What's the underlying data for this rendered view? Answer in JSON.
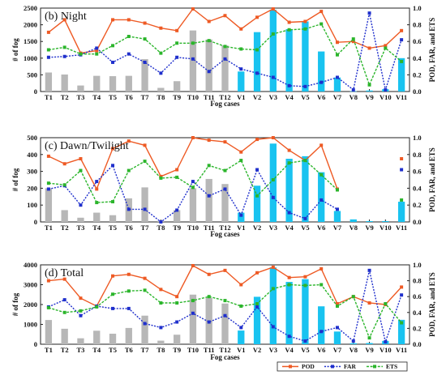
{
  "chart_data": [
    {
      "type": "bar",
      "title": "(b) Night",
      "xlabel": "Fog cases",
      "ylabel": "# of fog",
      "y2label": "POD, FAR, and ETS",
      "categories": [
        "T1",
        "T2",
        "T3",
        "T4",
        "T5",
        "T6",
        "T7",
        "T8",
        "T9",
        "T10",
        "T11",
        "T12",
        "V1",
        "V2",
        "V3",
        "V4",
        "V5",
        "V6",
        "V7",
        "V8",
        "V9",
        "V10",
        "V11"
      ],
      "ylim": [
        0,
        2500
      ],
      "yticks": [
        0,
        500,
        1000,
        1500,
        2000,
        2500
      ],
      "y2lim": [
        0,
        1.0
      ],
      "y2ticks": [
        "0.0",
        "0.2",
        "0.4",
        "0.6",
        "0.8",
        "1.0"
      ],
      "bar_colors": {
        "T": "#b7b7b7",
        "V": "#19c3f0"
      },
      "bars": [
        570,
        510,
        180,
        470,
        460,
        470,
        970,
        110,
        310,
        1830,
        1560,
        1380,
        600,
        1780,
        2450,
        1870,
        2100,
        1200,
        420,
        10,
        30,
        70,
        1000
      ],
      "series": [
        {
          "name": "POD",
          "color": "#ee5a24",
          "values": [
            0.71,
            0.86,
            0.46,
            0.49,
            0.86,
            0.86,
            0.82,
            0.76,
            0.73,
            0.99,
            0.84,
            0.91,
            0.75,
            0.89,
            0.99,
            0.83,
            0.84,
            0.96,
            0.59,
            0.6,
            0.52,
            0.55,
            0.73
          ]
        },
        {
          "name": "FAR",
          "color": "#1f2fcc",
          "values": [
            0.41,
            0.42,
            0.44,
            0.52,
            0.35,
            0.45,
            0.35,
            0.22,
            0.41,
            0.39,
            0.24,
            0.39,
            0.27,
            0.22,
            0.17,
            0.07,
            0.06,
            0.11,
            0.17,
            0.02,
            0.94,
            0.02,
            0.62
          ]
        },
        {
          "name": "ETS",
          "color": "#2bb52b",
          "values": [
            0.5,
            0.53,
            0.45,
            0.45,
            0.55,
            0.66,
            0.63,
            0.46,
            0.58,
            0.58,
            0.61,
            0.54,
            0.51,
            0.5,
            0.69,
            0.74,
            0.75,
            0.81,
            0.44,
            0.63,
            0.08,
            0.52,
            0.36
          ]
        }
      ]
    },
    {
      "type": "bar",
      "title": "(c) Dawn/Twilight",
      "xlabel": "Fog cases",
      "ylabel": "# of fog",
      "y2label": "POD, FAR, and ETS",
      "categories": [
        "T1",
        "T2",
        "T3",
        "T4",
        "T5",
        "T6",
        "T7",
        "T8",
        "T9",
        "T10",
        "T11",
        "T12",
        "V1",
        "V2",
        "V3",
        "V4",
        "V5",
        "V6",
        "V7",
        "V8",
        "V9",
        "V10",
        "V11"
      ],
      "ylim": [
        0,
        500
      ],
      "yticks": [
        0,
        100,
        200,
        300,
        400,
        500
      ],
      "y2lim": [
        0,
        1.0
      ],
      "y2ticks": [
        "0.0",
        "0.2",
        "0.4",
        "0.6",
        "0.8",
        "1.0"
      ],
      "bar_colors": {
        "T": "#b7b7b7",
        "V": "#19c3f0"
      },
      "bars": [
        200,
        70,
        25,
        55,
        40,
        140,
        205,
        5,
        70,
        200,
        255,
        225,
        55,
        215,
        465,
        375,
        390,
        295,
        65,
        15,
        5,
        5,
        120
      ],
      "series": [
        {
          "name": "POD",
          "color": "#ee5a24",
          "values": [
            0.78,
            0.69,
            0.75,
            0.39,
            0.87,
            0.96,
            0.91,
            0.54,
            0.62,
            1.0,
            0.97,
            0.95,
            0.83,
            0.98,
            1.0,
            0.85,
            0.73,
            0.91,
            0.39,
            null,
            null,
            null,
            0.75
          ]
        },
        {
          "name": "FAR",
          "color": "#1f2fcc",
          "values": [
            0.39,
            0.43,
            0.2,
            0.48,
            0.67,
            0.15,
            0.15,
            0.0,
            0.14,
            0.48,
            0.31,
            0.39,
            0.08,
            0.62,
            0.29,
            0.11,
            0.04,
            0.26,
            0.15,
            null,
            null,
            null,
            0.62
          ]
        },
        {
          "name": "ETS",
          "color": "#2bb52b",
          "values": [
            0.46,
            0.44,
            0.61,
            0.23,
            0.24,
            0.61,
            0.72,
            0.52,
            0.53,
            0.41,
            0.67,
            0.61,
            0.73,
            0.31,
            0.5,
            0.7,
            0.73,
            0.56,
            0.38,
            null,
            null,
            null,
            0.26
          ]
        }
      ]
    },
    {
      "type": "bar",
      "title": "(d) Total",
      "xlabel": "Fog cases",
      "ylabel": "# of fog",
      "y2label": "POD, FAR, and ETS",
      "categories": [
        "T1",
        "T2",
        "T3",
        "T4",
        "T5",
        "T6",
        "T7",
        "T8",
        "T9",
        "T10",
        "T11",
        "T12",
        "V1",
        "V2",
        "V3",
        "V4",
        "V5",
        "V6",
        "V7",
        "V8",
        "V9",
        "V10",
        "V11"
      ],
      "ylim": [
        0,
        4000
      ],
      "yticks": [
        0,
        1000,
        2000,
        3000,
        4000
      ],
      "y2lim": [
        0,
        1.0
      ],
      "y2ticks": [
        "0.0",
        "0.2",
        "0.4",
        "0.6",
        "0.8",
        "1.0"
      ],
      "bar_colors": {
        "T": "#b7b7b7",
        "V": "#19c3f0"
      },
      "bars": [
        1220,
        780,
        300,
        680,
        530,
        820,
        1440,
        180,
        480,
        2500,
        2330,
        2050,
        690,
        2390,
        3870,
        3140,
        3280,
        1910,
        640,
        50,
        60,
        170,
        1230
      ],
      "series": [
        {
          "name": "POD",
          "color": "#ee5a24",
          "values": [
            0.8,
            0.82,
            0.58,
            0.48,
            0.86,
            0.88,
            0.83,
            0.69,
            0.6,
            0.99,
            0.88,
            0.93,
            0.75,
            0.9,
            0.97,
            0.84,
            0.85,
            0.95,
            0.51,
            0.6,
            0.52,
            0.5,
            0.72
          ]
        },
        {
          "name": "FAR",
          "color": "#1f2fcc",
          "values": [
            0.47,
            0.56,
            0.36,
            0.48,
            0.45,
            0.45,
            0.26,
            0.21,
            0.28,
            0.39,
            0.28,
            0.36,
            0.21,
            0.47,
            0.22,
            0.1,
            0.04,
            0.16,
            0.21,
            0.04,
            0.93,
            0.03,
            0.62
          ]
        },
        {
          "name": "ETS",
          "color": "#2bb52b",
          "values": [
            0.46,
            0.4,
            0.42,
            0.47,
            0.63,
            0.67,
            0.68,
            0.52,
            0.52,
            0.55,
            0.6,
            0.55,
            0.48,
            0.51,
            0.7,
            0.75,
            0.74,
            0.75,
            0.48,
            0.6,
            0.08,
            0.51,
            0.27
          ]
        }
      ]
    }
  ],
  "legend": [
    {
      "name": "POD",
      "color": "#ee5a24"
    },
    {
      "name": "FAR",
      "color": "#1f2fcc"
    },
    {
      "name": "ETS",
      "color": "#2bb52b"
    }
  ]
}
